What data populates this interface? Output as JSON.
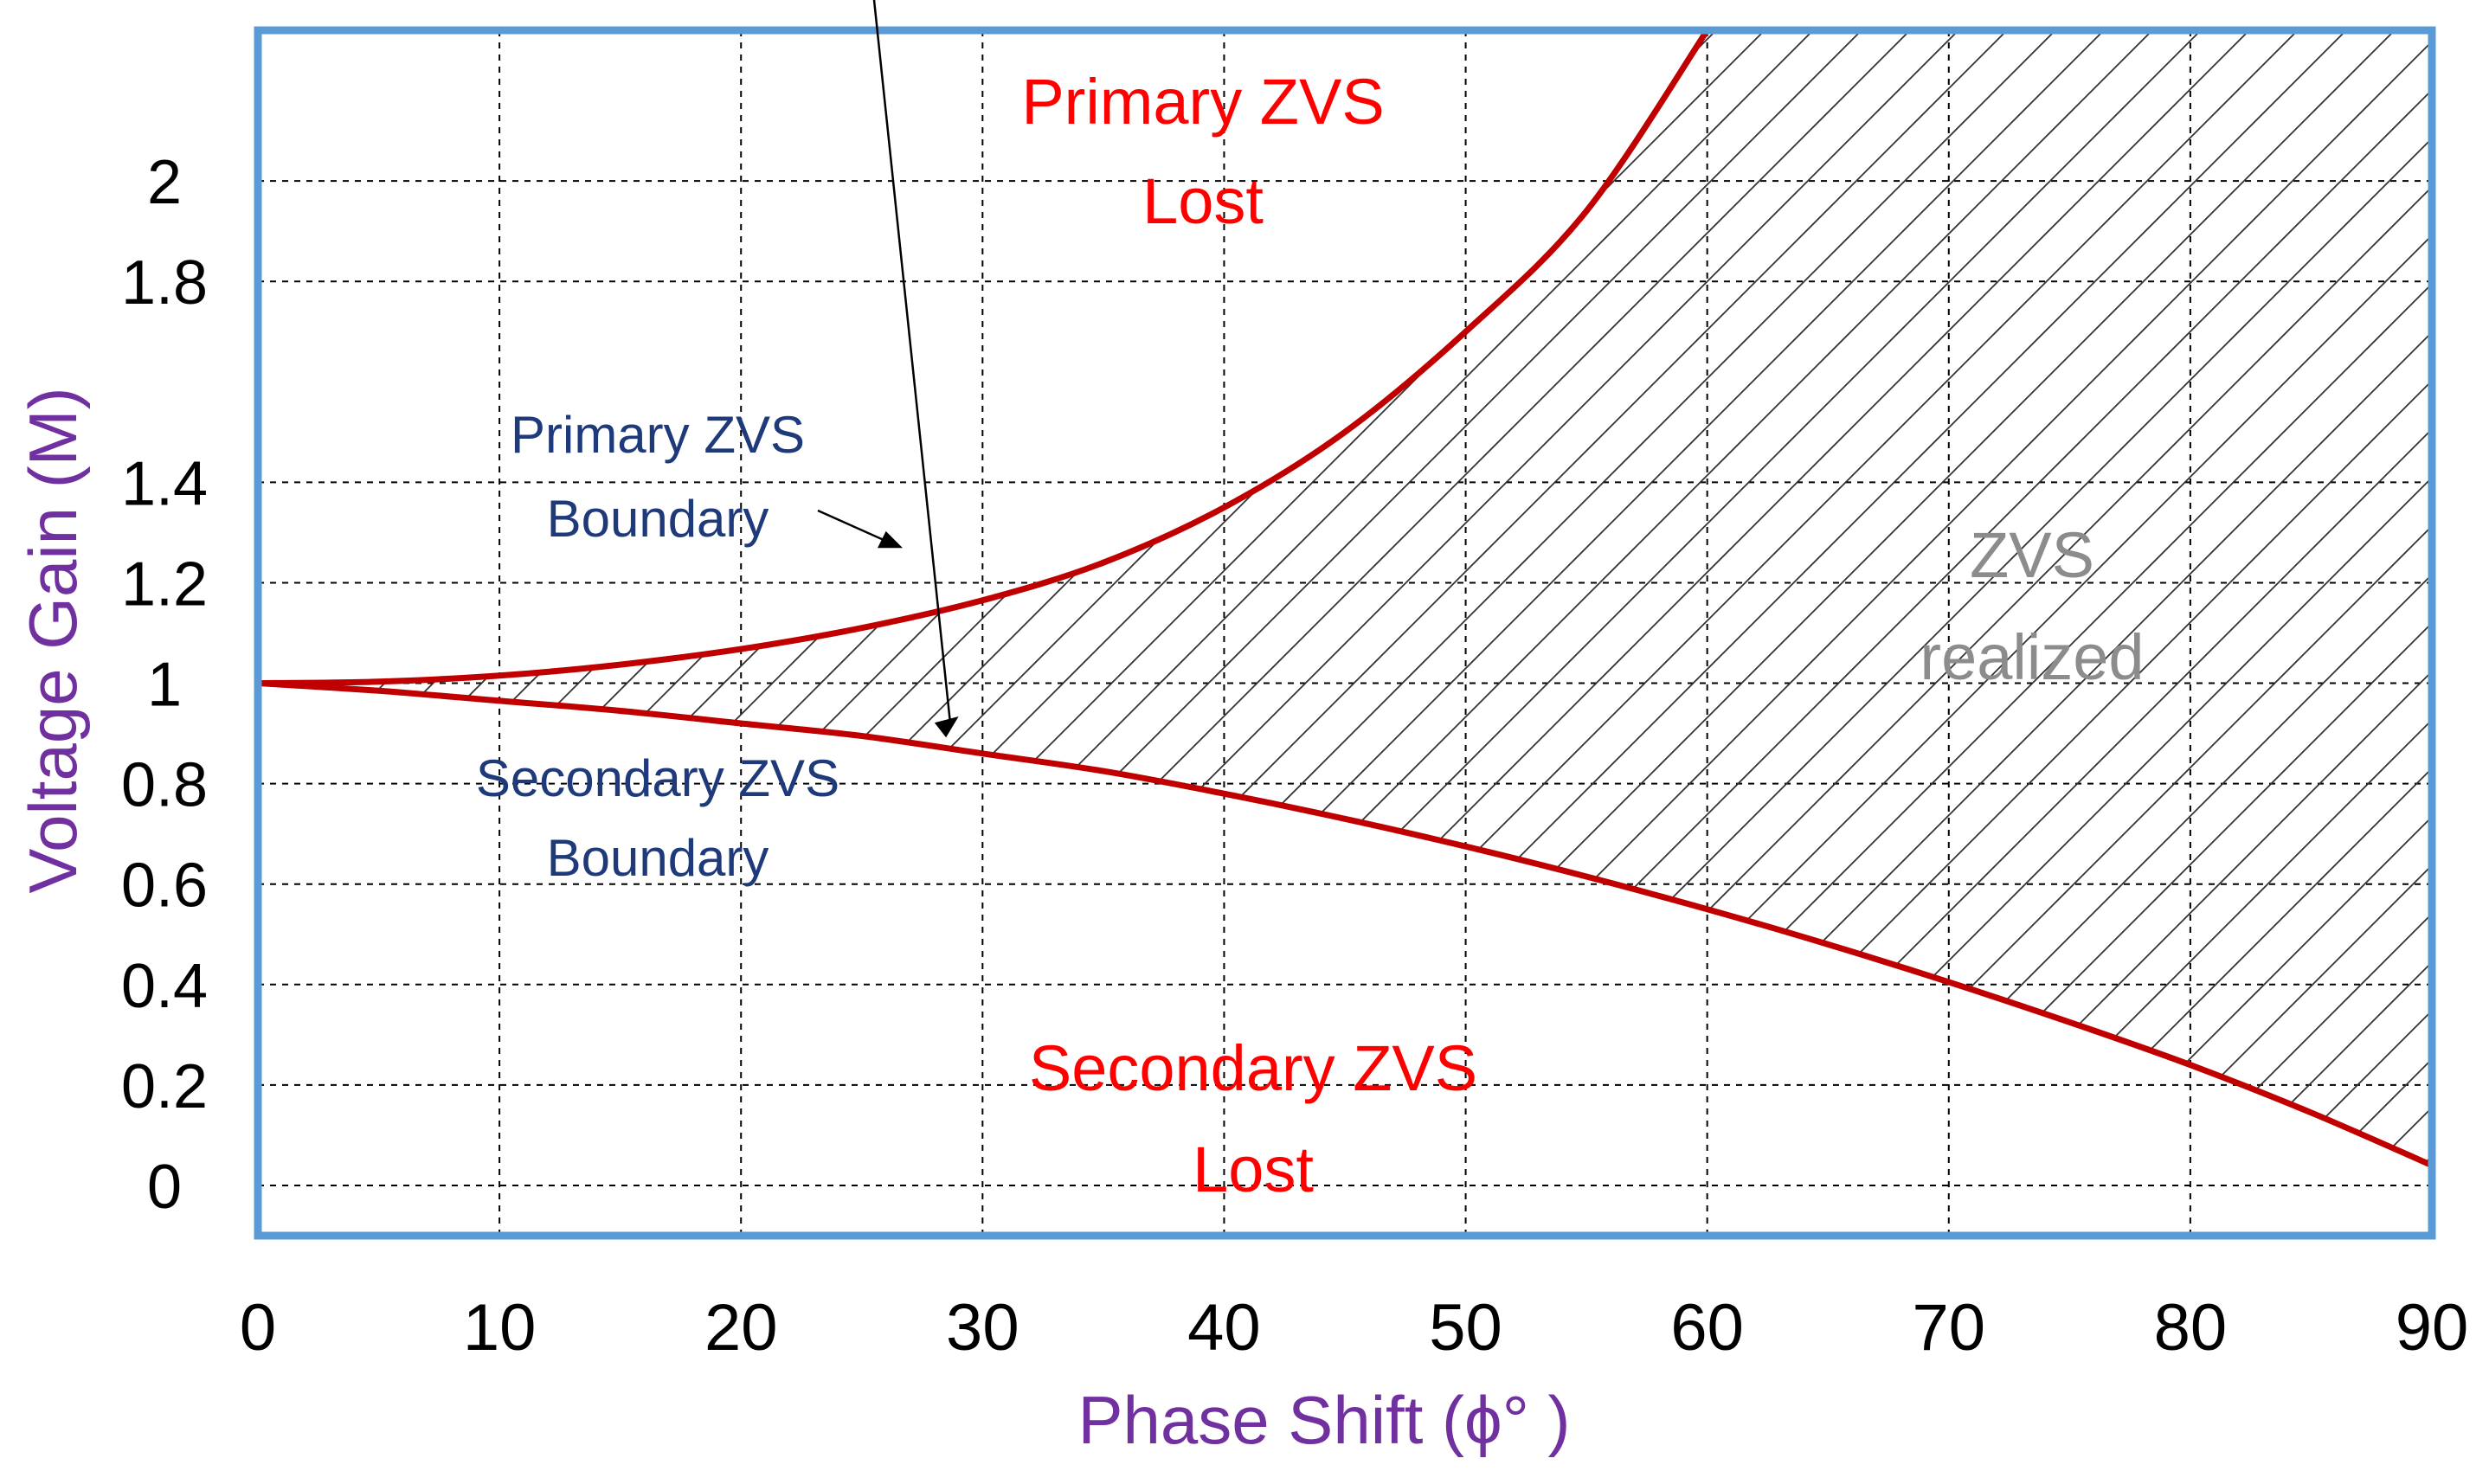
{
  "chart_data": {
    "type": "line",
    "xlabel": "Phase Shift (ϕ° )",
    "ylabel": "Voltage Gain (M)",
    "xlim": [
      0,
      90
    ],
    "ylim": [
      -0.1,
      2.3
    ],
    "x_ticks": [
      0,
      10,
      20,
      30,
      40,
      50,
      60,
      70,
      80,
      90
    ],
    "x_tick_labels": [
      "0",
      "10",
      "20",
      "30",
      "40",
      "50",
      "60",
      "70",
      "80",
      "90"
    ],
    "y_ticks": [
      0,
      0.2,
      0.4,
      0.6,
      0.8,
      1,
      1.2,
      1.4,
      1.8,
      2
    ],
    "y_tick_labels": [
      "0",
      "0.2",
      "0.4",
      "0.6",
      "0.8",
      "1",
      "1.2",
      "1.4",
      "1.8",
      "2"
    ],
    "grid": true,
    "series": [
      {
        "name": "Primary ZVS Boundary",
        "color": "#c00000",
        "x": [
          0,
          5,
          10,
          15,
          20,
          25,
          30,
          35,
          40,
          45,
          50,
          55,
          60
        ],
        "y": [
          1.0,
          1.003,
          1.015,
          1.037,
          1.068,
          1.11,
          1.165,
          1.24,
          1.35,
          1.5,
          1.7,
          1.94,
          2.3
        ]
      },
      {
        "name": "Secondary ZVS Boundary",
        "color": "#c00000",
        "x": [
          0,
          5,
          10,
          15,
          20,
          25,
          30,
          35,
          40,
          45,
          50,
          55,
          60,
          65,
          70,
          75,
          80,
          85,
          90
        ],
        "y": [
          1.0,
          0.985,
          0.965,
          0.945,
          0.92,
          0.895,
          0.86,
          0.825,
          0.78,
          0.73,
          0.675,
          0.615,
          0.55,
          0.48,
          0.405,
          0.325,
          0.24,
          0.145,
          0.04
        ]
      }
    ],
    "annotations": {
      "primary_lost": [
        "Primary ZVS",
        "Lost"
      ],
      "secondary_lost": [
        "Secondary ZVS",
        "Lost"
      ],
      "zvs_realized": [
        "ZVS",
        "realized"
      ],
      "primary_boundary": [
        "Primary ZVS",
        "Boundary"
      ],
      "secondary_boundary": [
        "Secondary ZVS",
        "Boundary"
      ]
    },
    "colors": {
      "frame": "#5b9bd5",
      "curve": "#c00000",
      "lost_text": "#ff0000",
      "boundary_text": "#1f3a7a",
      "realized_text": "#8c8c8c",
      "axis_title": "#7030a0",
      "tick_text": "#000000",
      "grid": "#000000",
      "hatch": "#333333"
    }
  }
}
